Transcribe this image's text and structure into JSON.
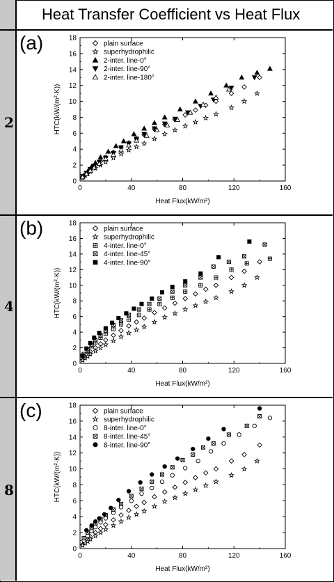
{
  "title": "Heat Transfer Coefficient vs Heat Flux",
  "panels": [
    {
      "label": "(a)",
      "row_number": "2"
    },
    {
      "label": "(b)",
      "row_number": "4"
    },
    {
      "label": "(c)",
      "row_number": "8"
    }
  ],
  "chart_data": [
    {
      "type": "scatter",
      "xlabel": "Heat Flux(kW/m²)",
      "ylabel": "HTC(kW/(m²·K))",
      "xlim": [
        0,
        160
      ],
      "ylim": [
        0,
        18
      ],
      "xticks": [
        "0",
        "40",
        "80",
        "120",
        "160"
      ],
      "yticks": [
        "0",
        "2",
        "4",
        "6",
        "8",
        "10",
        "12",
        "14",
        "16",
        "18"
      ],
      "legend_position": "top-left",
      "series": [
        {
          "name": "plain surface",
          "marker": "diamond-open",
          "x": [
            2,
            4,
            6,
            8,
            12,
            16,
            20,
            26,
            32,
            38,
            44,
            50,
            58,
            66,
            74,
            82,
            90,
            98,
            106,
            118,
            128,
            140
          ],
          "y": [
            0.5,
            0.8,
            1.1,
            1.5,
            2.0,
            2.5,
            3.0,
            3.6,
            4.2,
            4.8,
            5.3,
            5.8,
            6.5,
            7.1,
            7.7,
            8.3,
            8.9,
            9.5,
            10.0,
            11.0,
            11.8,
            13.0
          ]
        },
        {
          "name": "superhydrophilic",
          "marker": "star",
          "x": [
            2,
            4,
            6,
            8,
            12,
            16,
            20,
            26,
            32,
            38,
            44,
            50,
            58,
            66,
            74,
            82,
            90,
            98,
            106,
            118,
            128,
            138
          ],
          "y": [
            0.4,
            0.7,
            0.9,
            1.2,
            1.6,
            2.0,
            2.4,
            2.9,
            3.4,
            3.9,
            4.3,
            4.7,
            5.3,
            5.9,
            6.4,
            6.9,
            7.4,
            7.9,
            8.4,
            9.2,
            10.0,
            11.0
          ]
        },
        {
          "name": "2-inter. line-0°",
          "marker": "triangle-filled",
          "x": [
            3,
            6,
            9,
            12,
            16,
            22,
            28,
            34,
            42,
            50,
            58,
            66,
            78,
            90,
            102,
            114,
            126,
            138,
            148
          ],
          "y": [
            0.7,
            1.2,
            1.8,
            2.3,
            3.0,
            3.7,
            4.4,
            5.0,
            5.9,
            6.6,
            7.3,
            8.0,
            9.0,
            10.0,
            11.0,
            12.0,
            13.0,
            13.6,
            14.1
          ]
        },
        {
          "name": "2-inter. line-90°",
          "marker": "triangle-down-filled",
          "x": [
            2,
            5,
            8,
            11,
            15,
            20,
            26,
            32,
            38,
            44,
            50,
            58,
            66,
            74,
            84,
            94,
            104,
            118,
            136
          ],
          "y": [
            0.6,
            1.0,
            1.5,
            1.9,
            2.4,
            2.9,
            3.5,
            4.2,
            4.7,
            5.3,
            5.9,
            6.6,
            7.2,
            7.8,
            8.6,
            9.4,
            10.2,
            11.7,
            13.0
          ]
        },
        {
          "name": "2-inter. line-180°",
          "marker": "triangle-open",
          "x": [
            2,
            5,
            8,
            11,
            15,
            20,
            26,
            32,
            38,
            44,
            52,
            60,
            68,
            76,
            86,
            96,
            106,
            116
          ],
          "y": [
            0.5,
            0.9,
            1.3,
            1.7,
            2.2,
            2.8,
            3.3,
            3.9,
            4.5,
            5.1,
            5.7,
            6.4,
            7.0,
            7.7,
            8.6,
            9.6,
            10.5,
            11.5
          ]
        }
      ]
    },
    {
      "type": "scatter",
      "xlabel": "Heat Flux(kW/m²)",
      "ylabel": "HTC(kW/(m²·K))",
      "xlim": [
        0,
        160
      ],
      "ylim": [
        0,
        18
      ],
      "xticks": [
        "0",
        "40",
        "80",
        "120",
        "160"
      ],
      "yticks": [
        "0",
        "2",
        "4",
        "6",
        "8",
        "10",
        "12",
        "14",
        "16",
        "18"
      ],
      "legend_position": "top-left",
      "series": [
        {
          "name": "plain surface",
          "marker": "diamond-open",
          "x": [
            2,
            4,
            6,
            8,
            12,
            16,
            20,
            26,
            32,
            38,
            44,
            50,
            58,
            66,
            74,
            82,
            90,
            98,
            106,
            118,
            128,
            140
          ],
          "y": [
            0.5,
            0.8,
            1.1,
            1.5,
            2.0,
            2.5,
            3.0,
            3.6,
            4.2,
            4.8,
            5.3,
            5.8,
            6.5,
            7.1,
            7.7,
            8.3,
            8.9,
            9.5,
            10.0,
            11.0,
            11.8,
            13.0
          ]
        },
        {
          "name": "superhydrophilic",
          "marker": "star",
          "x": [
            2,
            4,
            6,
            8,
            12,
            16,
            20,
            26,
            32,
            38,
            44,
            50,
            58,
            66,
            74,
            82,
            90,
            98,
            106,
            118,
            128,
            138
          ],
          "y": [
            0.4,
            0.7,
            0.9,
            1.2,
            1.6,
            2.0,
            2.4,
            2.9,
            3.4,
            3.9,
            4.3,
            4.7,
            5.3,
            5.9,
            6.4,
            6.9,
            7.4,
            7.9,
            8.4,
            9.2,
            10.0,
            11.0
          ]
        },
        {
          "name": "4-inter. line-0°",
          "marker": "square-plus",
          "x": [
            3,
            6,
            9,
            12,
            16,
            20,
            26,
            32,
            38,
            46,
            54,
            62,
            72,
            82,
            94,
            106,
            118,
            130,
            148
          ],
          "y": [
            1.0,
            1.6,
            2.2,
            2.7,
            3.3,
            3.8,
            4.4,
            5.0,
            5.6,
            6.2,
            6.9,
            7.6,
            8.4,
            9.2,
            10.0,
            11.0,
            12.0,
            12.8,
            13.4
          ]
        },
        {
          "name": "4-inter. line-45°",
          "marker": "square-x",
          "x": [
            3,
            6,
            9,
            12,
            16,
            20,
            26,
            32,
            38,
            46,
            54,
            62,
            72,
            82,
            94,
            104,
            116,
            128,
            144
          ],
          "y": [
            1.2,
            1.8,
            2.4,
            3.0,
            3.6,
            4.2,
            4.9,
            5.5,
            6.2,
            6.9,
            7.6,
            8.3,
            9.2,
            10.0,
            11.0,
            12.4,
            13.0,
            13.7,
            15.2
          ]
        },
        {
          "name": "4-inter. line-90°",
          "marker": "square-filled",
          "x": [
            2,
            5,
            8,
            11,
            15,
            20,
            25,
            30,
            36,
            42,
            48,
            56,
            64,
            72,
            82,
            94,
            108,
            132
          ],
          "y": [
            1.0,
            1.9,
            2.6,
            3.3,
            3.9,
            4.5,
            5.2,
            5.8,
            6.4,
            7.0,
            7.6,
            8.3,
            9.1,
            9.8,
            10.5,
            11.5,
            13.6,
            15.6
          ]
        }
      ]
    },
    {
      "type": "scatter",
      "xlabel": "Heat Flux(kW/m²)",
      "ylabel": "HTC(kW/(m²·K))",
      "xlim": [
        0,
        160
      ],
      "ylim": [
        0,
        18
      ],
      "xticks": [
        "0",
        "40",
        "80",
        "120",
        "160"
      ],
      "yticks": [
        "0",
        "2",
        "4",
        "6",
        "8",
        "10",
        "12",
        "14",
        "16",
        "18"
      ],
      "legend_position": "top-left",
      "series": [
        {
          "name": "plain surface",
          "marker": "diamond-open",
          "x": [
            2,
            4,
            6,
            8,
            12,
            16,
            20,
            26,
            32,
            38,
            44,
            50,
            58,
            66,
            74,
            82,
            90,
            98,
            106,
            118,
            128,
            140
          ],
          "y": [
            0.5,
            0.8,
            1.1,
            1.5,
            2.0,
            2.5,
            3.0,
            3.6,
            4.2,
            4.8,
            5.3,
            5.8,
            6.5,
            7.1,
            7.7,
            8.3,
            8.9,
            9.5,
            10.0,
            11.0,
            11.8,
            13.0
          ]
        },
        {
          "name": "superhydrophilic",
          "marker": "star",
          "x": [
            2,
            4,
            6,
            8,
            12,
            16,
            20,
            26,
            32,
            38,
            44,
            50,
            58,
            66,
            74,
            82,
            90,
            98,
            106,
            118,
            128,
            138
          ],
          "y": [
            0.4,
            0.7,
            0.9,
            1.2,
            1.6,
            2.0,
            2.4,
            2.9,
            3.4,
            3.9,
            4.3,
            4.7,
            5.3,
            5.9,
            6.4,
            6.9,
            7.4,
            7.9,
            8.4,
            9.2,
            10.0,
            11.0
          ]
        },
        {
          "name": "8-inter. line-0°",
          "marker": "circle-open",
          "x": [
            3,
            6,
            9,
            12,
            16,
            20,
            26,
            32,
            40,
            48,
            56,
            64,
            72,
            82,
            92,
            102,
            112,
            124,
            136,
            148
          ],
          "y": [
            1.0,
            1.6,
            2.2,
            2.7,
            3.3,
            3.8,
            4.5,
            5.2,
            6.0,
            6.9,
            7.6,
            8.4,
            9.2,
            10.1,
            11.0,
            12.2,
            13.2,
            14.3,
            15.4,
            16.4
          ]
        },
        {
          "name": "8-inter. line-45°",
          "marker": "square-x",
          "x": [
            3,
            6,
            9,
            12,
            16,
            20,
            26,
            32,
            40,
            48,
            56,
            64,
            72,
            80,
            88,
            96,
            104,
            116,
            130,
            140
          ],
          "y": [
            1.3,
            2.0,
            2.6,
            3.1,
            3.7,
            4.2,
            4.9,
            5.6,
            6.6,
            7.5,
            8.4,
            9.3,
            10.2,
            11.1,
            11.8,
            12.7,
            13.2,
            14.3,
            15.4,
            16.6
          ]
        },
        {
          "name": "8-inter. line-90°",
          "marker": "circle-filled",
          "x": [
            5,
            9,
            12,
            15,
            19,
            24,
            30,
            38,
            47,
            56,
            66,
            76,
            88,
            100,
            112,
            140
          ],
          "y": [
            2.3,
            2.9,
            3.4,
            3.8,
            4.3,
            5.1,
            6.1,
            7.2,
            8.3,
            9.3,
            10.3,
            11.3,
            12.5,
            13.8,
            15.0,
            17.6
          ]
        }
      ]
    }
  ]
}
